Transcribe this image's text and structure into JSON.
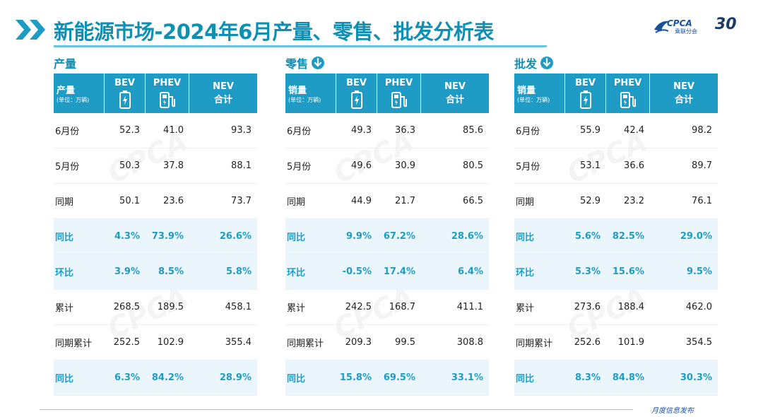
{
  "header": {
    "title": "新能源市场-2024年6月产量、零售、批发分析表",
    "logo_text": "CPCA",
    "logo_sub": "乘联分会",
    "logo_30": "30"
  },
  "colors": {
    "accent": "#1e9cc6",
    "title": "#0f8fb4",
    "highlight_bg": "#eaf6fb"
  },
  "columns": {
    "bev": "BEV",
    "phev": "PHEV",
    "nev_line1": "NEV",
    "nev_line2": "合计",
    "unit": "(单位：万辆)"
  },
  "panels": [
    {
      "title": "产量",
      "col0": "产量",
      "has_down_icon": false,
      "rows": [
        {
          "label": "6月份",
          "bev": "52.3",
          "phev": "41.0",
          "nev": "93.3",
          "highlight": false
        },
        {
          "label": "5月份",
          "bev": "50.3",
          "phev": "37.8",
          "nev": "88.1",
          "highlight": false
        },
        {
          "label": "同期",
          "bev": "50.1",
          "phev": "23.6",
          "nev": "73.7",
          "highlight": false
        },
        {
          "label": "同比",
          "bev": "4.3%",
          "phev": "73.9%",
          "nev": "26.6%",
          "highlight": true
        },
        {
          "label": "环比",
          "bev": "3.9%",
          "phev": "8.5%",
          "nev": "5.8%",
          "highlight": true
        },
        {
          "label": "累计",
          "bev": "268.5",
          "phev": "189.5",
          "nev": "458.1",
          "highlight": false
        },
        {
          "label": "同期累计",
          "bev": "252.5",
          "phev": "102.9",
          "nev": "355.4",
          "highlight": false
        },
        {
          "label": "同比",
          "bev": "6.3%",
          "phev": "84.2%",
          "nev": "28.9%",
          "highlight": true
        }
      ]
    },
    {
      "title": "零售",
      "col0": "销量",
      "has_down_icon": true,
      "rows": [
        {
          "label": "6月份",
          "bev": "49.3",
          "phev": "36.3",
          "nev": "85.6",
          "highlight": false
        },
        {
          "label": "5月份",
          "bev": "49.6",
          "phev": "30.9",
          "nev": "80.5",
          "highlight": false
        },
        {
          "label": "同期",
          "bev": "44.9",
          "phev": "21.7",
          "nev": "66.5",
          "highlight": false
        },
        {
          "label": "同比",
          "bev": "9.9%",
          "phev": "67.2%",
          "nev": "28.6%",
          "highlight": true
        },
        {
          "label": "环比",
          "bev": "-0.5%",
          "phev": "17.4%",
          "nev": "6.4%",
          "highlight": true
        },
        {
          "label": "累计",
          "bev": "242.5",
          "phev": "168.7",
          "nev": "411.1",
          "highlight": false
        },
        {
          "label": "同期累计",
          "bev": "209.3",
          "phev": "99.5",
          "nev": "308.8",
          "highlight": false
        },
        {
          "label": "同比",
          "bev": "15.8%",
          "phev": "69.5%",
          "nev": "33.1%",
          "highlight": true
        }
      ]
    },
    {
      "title": "批发",
      "col0": "销量",
      "has_down_icon": true,
      "rows": [
        {
          "label": "6月份",
          "bev": "55.9",
          "phev": "42.4",
          "nev": "98.2",
          "highlight": false
        },
        {
          "label": "5月份",
          "bev": "53.1",
          "phev": "36.6",
          "nev": "89.7",
          "highlight": false
        },
        {
          "label": "同期",
          "bev": "52.9",
          "phev": "23.2",
          "nev": "76.1",
          "highlight": false
        },
        {
          "label": "同比",
          "bev": "5.6%",
          "phev": "82.5%",
          "nev": "29.0%",
          "highlight": true
        },
        {
          "label": "环比",
          "bev": "5.3%",
          "phev": "15.6%",
          "nev": "9.5%",
          "highlight": true
        },
        {
          "label": "累计",
          "bev": "273.6",
          "phev": "188.4",
          "nev": "462.0",
          "highlight": false
        },
        {
          "label": "同期累计",
          "bev": "252.6",
          "phev": "101.9",
          "nev": "354.5",
          "highlight": false
        },
        {
          "label": "同比",
          "bev": "8.3%",
          "phev": "84.8%",
          "nev": "30.3%",
          "highlight": true
        }
      ]
    }
  ],
  "footer": {
    "text": "月度信息发布"
  }
}
